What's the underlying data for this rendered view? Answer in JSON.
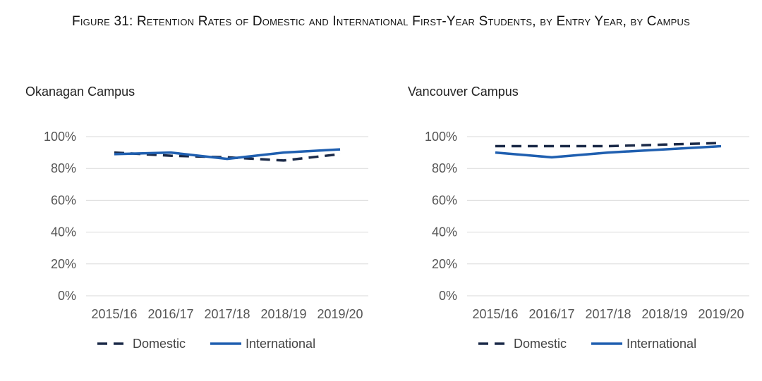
{
  "figure_title": "Figure 31: Retention Rates of Domestic and International First-Year Students, by Entry Year, by Campus",
  "colors": {
    "domestic": "#1b2a48",
    "international": "#1f5fb0",
    "grid": "#d9d9d9"
  },
  "chart_data": [
    {
      "type": "line",
      "title": "Okanagan Campus",
      "categories": [
        "2015/16",
        "2016/17",
        "2017/18",
        "2018/19",
        "2019/20"
      ],
      "ylim": [
        0,
        100
      ],
      "yticks": [
        "0%",
        "20%",
        "40%",
        "60%",
        "80%",
        "100%"
      ],
      "grid": true,
      "legend": "bottom",
      "series": [
        {
          "name": "Domestic",
          "style": "dashed",
          "values": [
            90,
            88,
            87,
            85,
            89
          ]
        },
        {
          "name": "International",
          "style": "solid",
          "values": [
            89,
            90,
            86,
            90,
            92
          ]
        }
      ]
    },
    {
      "type": "line",
      "title": "Vancouver Campus",
      "categories": [
        "2015/16",
        "2016/17",
        "2017/18",
        "2018/19",
        "2019/20"
      ],
      "ylim": [
        0,
        100
      ],
      "yticks": [
        "0%",
        "20%",
        "40%",
        "60%",
        "80%",
        "100%"
      ],
      "grid": true,
      "legend": "bottom",
      "series": [
        {
          "name": "Domestic",
          "style": "dashed",
          "values": [
            94,
            94,
            94,
            95,
            96
          ]
        },
        {
          "name": "International",
          "style": "solid",
          "values": [
            90,
            87,
            90,
            92,
            94
          ]
        }
      ]
    }
  ]
}
